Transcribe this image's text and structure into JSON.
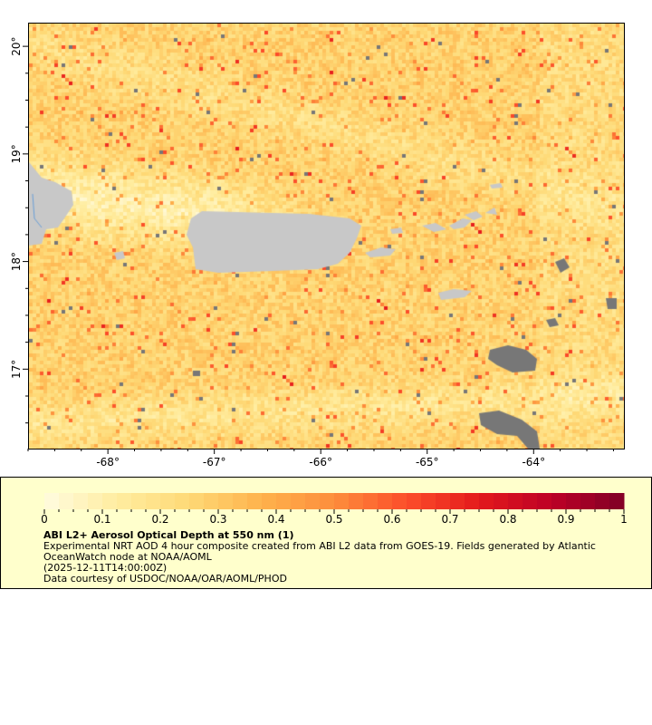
{
  "map": {
    "lon_range": [
      -68.75,
      -63.16
    ],
    "lat_range": [
      16.27,
      20.22
    ],
    "lon_ticks": [
      -68,
      -67,
      -66,
      -65,
      -64
    ],
    "lon_tick_labels": [
      "-68°",
      "-67°",
      "-66°",
      "-65°",
      "-64°"
    ],
    "lat_ticks": [
      20,
      19,
      18,
      17
    ],
    "lat_tick_labels": [
      "20°",
      "19°",
      "18°",
      "17°"
    ],
    "land_color": "#c8c8c8",
    "missing_color": "#777777"
  },
  "legend": {
    "colorbar_range": [
      0,
      1
    ],
    "colorbar_ticks": [
      "0",
      "0.1",
      "0.2",
      "0.3",
      "0.4",
      "0.5",
      "0.6",
      "0.7",
      "0.8",
      "0.9",
      "1"
    ],
    "colormap_stops": [
      "#fffbdf",
      "#ffeda0",
      "#fed976",
      "#feb24c",
      "#fd8d3c",
      "#fc4e2a",
      "#e31a1c",
      "#bd0026",
      "#800026"
    ],
    "title": "ABI L2+ Aerosol Optical Depth at 550 nm (1)",
    "line1": "Experimental NRT AOD 4 hour composite created from ABI L2 data from GOES-19. Fields generated by Atlantic",
    "line2": "OceanWatch node at NOAA/AOML",
    "time": "(2025-12-11T14:00:00Z)",
    "credit": "Data courtesy of USDOC/NOAA/OAR/AOML/PHOD"
  }
}
